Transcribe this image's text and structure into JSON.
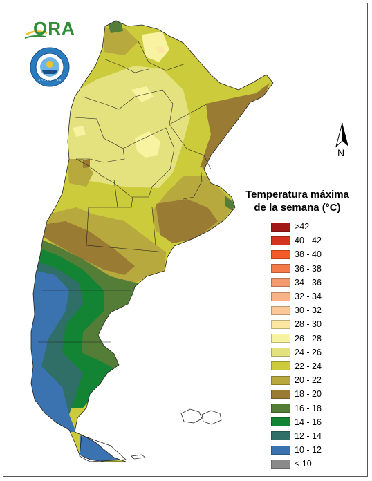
{
  "logo": {
    "text": "ORA",
    "bar_color": "#f2c12e",
    "text_color": "#2f8d3a"
  },
  "seal": {
    "caption": "SERVICIO METEOROLÓGICO NACIONAL · ARGENTINA",
    "caption_short": "A R G E N T I N A",
    "ring_color": "#2b7bbf"
  },
  "north_arrow": {
    "label": "N"
  },
  "legend": {
    "title_line1": "Temperatura máxima",
    "title_line2": "de la semana (°C)",
    "items": [
      {
        "label": ">42",
        "color": "#a31818"
      },
      {
        "label": "40 - 42",
        "color": "#d4331f"
      },
      {
        "label": "38 - 40",
        "color": "#f45a2a"
      },
      {
        "label": "36 - 38",
        "color": "#f47a4a"
      },
      {
        "label": "34 - 36",
        "color": "#f59a70"
      },
      {
        "label": "32 - 34",
        "color": "#f7b286"
      },
      {
        "label": "30 - 32",
        "color": "#fac898"
      },
      {
        "label": "28 - 30",
        "color": "#fbe7a2"
      },
      {
        "label": "26 - 28",
        "color": "#f7f3a0"
      },
      {
        "label": "24 - 26",
        "color": "#e3e27f"
      },
      {
        "label": "22 - 24",
        "color": "#cccb3b"
      },
      {
        "label": "20 - 22",
        "color": "#b7a93e"
      },
      {
        "label": "18 - 20",
        "color": "#9a7b34"
      },
      {
        "label": "16 - 18",
        "color": "#547d37"
      },
      {
        "label": "14 - 16",
        "color": "#138433"
      },
      {
        "label": "12 - 14",
        "color": "#2f6f68"
      },
      {
        "label": "10 - 12",
        "color": "#3b73b0"
      },
      {
        "label": "< 10",
        "color": "#8a8a8a"
      }
    ]
  },
  "map_colors": {
    "t28_30": "#fbe7a2",
    "t26_28": "#f7f3a0",
    "t24_26": "#e3e27f",
    "t22_24": "#cccb3b",
    "t20_22": "#b7a93e",
    "t18_20": "#9a7b34",
    "t16_18": "#547d37",
    "t14_16": "#138433",
    "t12_14": "#2f6f68",
    "t10_12": "#3b73b0"
  }
}
